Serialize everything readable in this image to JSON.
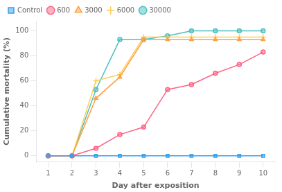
{
  "chart_data": {
    "type": "line",
    "x": [
      1,
      2,
      3,
      4,
      5,
      6,
      7,
      8,
      9,
      10
    ],
    "series": [
      {
        "name": "Control",
        "values": [
          0,
          0,
          0,
          0,
          0,
          0,
          0,
          0,
          0,
          0
        ],
        "marker": "square",
        "line_style": "solid"
      },
      {
        "name": "600",
        "values": [
          0,
          0,
          6,
          17,
          23,
          53,
          57,
          66,
          73,
          83
        ],
        "marker": "circle",
        "line_style": "solid"
      },
      {
        "name": "3000",
        "values": [
          0,
          0,
          46,
          63,
          93,
          93,
          93,
          93,
          93,
          93
        ],
        "marker": "triangle",
        "line_style": "solid"
      },
      {
        "name": "6000",
        "values": [
          0,
          0,
          60,
          65,
          95,
          95,
          95,
          95,
          95,
          95
        ],
        "marker": "plus",
        "line_style": "solid"
      },
      {
        "name": "30000",
        "values": [
          0,
          0,
          53,
          93,
          93,
          96,
          100,
          100,
          100,
          100
        ],
        "marker": "circle",
        "line_style": "solid"
      }
    ],
    "x_label": "Day after exposition",
    "y_label": "Cumulative mortality (%)",
    "xlim": [
      0.5,
      10.5
    ],
    "ylim": [
      -5,
      108
    ],
    "xticks": [
      1,
      2,
      3,
      4,
      5,
      6,
      7,
      8,
      9,
      10
    ],
    "yticks": [
      0,
      20,
      40,
      60,
      80,
      100
    ],
    "grid": false,
    "legend": "upper left"
  }
}
